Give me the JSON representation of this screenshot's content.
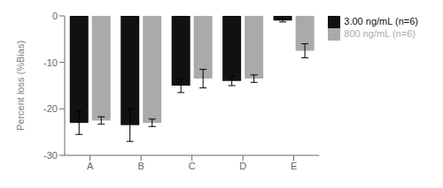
{
  "chart_data": {
    "type": "bar",
    "categories": [
      "A",
      "B",
      "C",
      "D",
      "E"
    ],
    "series": [
      {
        "name": "3.00 ng/mL (n=6)",
        "color": "#111111",
        "values": [
          -23.0,
          -23.5,
          -15.0,
          -14.0,
          -1.0
        ],
        "errors": [
          2.5,
          3.5,
          1.5,
          1.0,
          0.3
        ]
      },
      {
        "name": "800 ng/mL (n=6)",
        "color": "#aaaaaa",
        "values": [
          -22.5,
          -23.0,
          -13.5,
          -13.5,
          -7.5
        ],
        "errors": [
          0.8,
          0.8,
          2.0,
          0.8,
          1.5
        ]
      }
    ],
    "ylabel": "Percent loss (%Bias)",
    "ylim": [
      -30,
      0
    ],
    "yticks": [
      0,
      -10,
      -20,
      -30
    ],
    "grid": false,
    "legend": "right"
  }
}
